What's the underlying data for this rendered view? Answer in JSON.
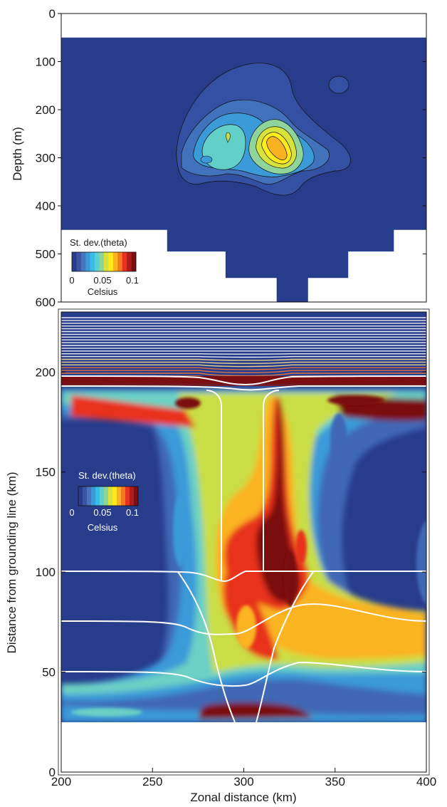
{
  "colors": {
    "cbar": [
      "#283c8c",
      "#3b54a5",
      "#4a74bd",
      "#3b9ad8",
      "#37bde8",
      "#5fd0d0",
      "#8dd39a",
      "#d7e23c",
      "#ffea1c",
      "#fbb421",
      "#f47a21",
      "#e8321f",
      "#b01a1a",
      "#7a0e10"
    ],
    "background": "#283c8c",
    "contourLine": "#111111",
    "streamLine": "#ffffff"
  },
  "chart_data": [
    {
      "type": "heatmap",
      "panel": "top",
      "ylabel": "Depth (m)",
      "xlim": [
        200,
        400
      ],
      "ylim": [
        600,
        0
      ],
      "yticks": [
        "0",
        "100",
        "200",
        "300",
        "400",
        "500",
        "600"
      ],
      "domain_steps": [
        {
          "x": [
            200,
            258
          ],
          "max_depth": 450
        },
        {
          "x": [
            258,
            290
          ],
          "max_depth": 495
        },
        {
          "x": [
            290,
            318
          ],
          "max_depth": 550
        },
        {
          "x": [
            318,
            335
          ],
          "max_depth": 600
        },
        {
          "x": [
            335,
            357
          ],
          "max_depth": 550
        },
        {
          "x": [
            357,
            382
          ],
          "max_depth": 495
        },
        {
          "x": [
            382,
            400
          ],
          "max_depth": 450
        }
      ],
      "top_depth": 50,
      "colorbar": {
        "title": "St. dev.(theta)",
        "ticks": [
          "0",
          "0.05",
          "0.1"
        ],
        "unit": "Celsius",
        "range": [
          0,
          0.1
        ]
      },
      "contour_levels": [
        0.02,
        0.04,
        0.055,
        0.07,
        0.085
      ],
      "features": [
        {
          "x": 298,
          "depth": 260,
          "peak": 0.055
        },
        {
          "x": 322,
          "depth": 270,
          "peak": 0.095
        }
      ]
    },
    {
      "type": "heatmap",
      "panel": "bottom",
      "xlabel": "Zonal distance (km)",
      "ylabel": "Distance from grounding line (km)",
      "xlim": [
        200,
        400
      ],
      "ylim": [
        0,
        230
      ],
      "xticks": [
        "200",
        "250",
        "300",
        "350",
        "400"
      ],
      "yticks": [
        "0",
        "50",
        "100",
        "150",
        "200"
      ],
      "colorbar": {
        "title": "St. dev.(theta)",
        "ticks": [
          "0",
          "0.05",
          "0.1"
        ],
        "unit": "Celsius",
        "range": [
          0,
          0.1
        ]
      },
      "ice_shelf_front": 210,
      "grounding_zone": 28,
      "streamlines_y": [
        108,
        81,
        53
      ],
      "channel_x": [
        289,
        311
      ]
    }
  ]
}
